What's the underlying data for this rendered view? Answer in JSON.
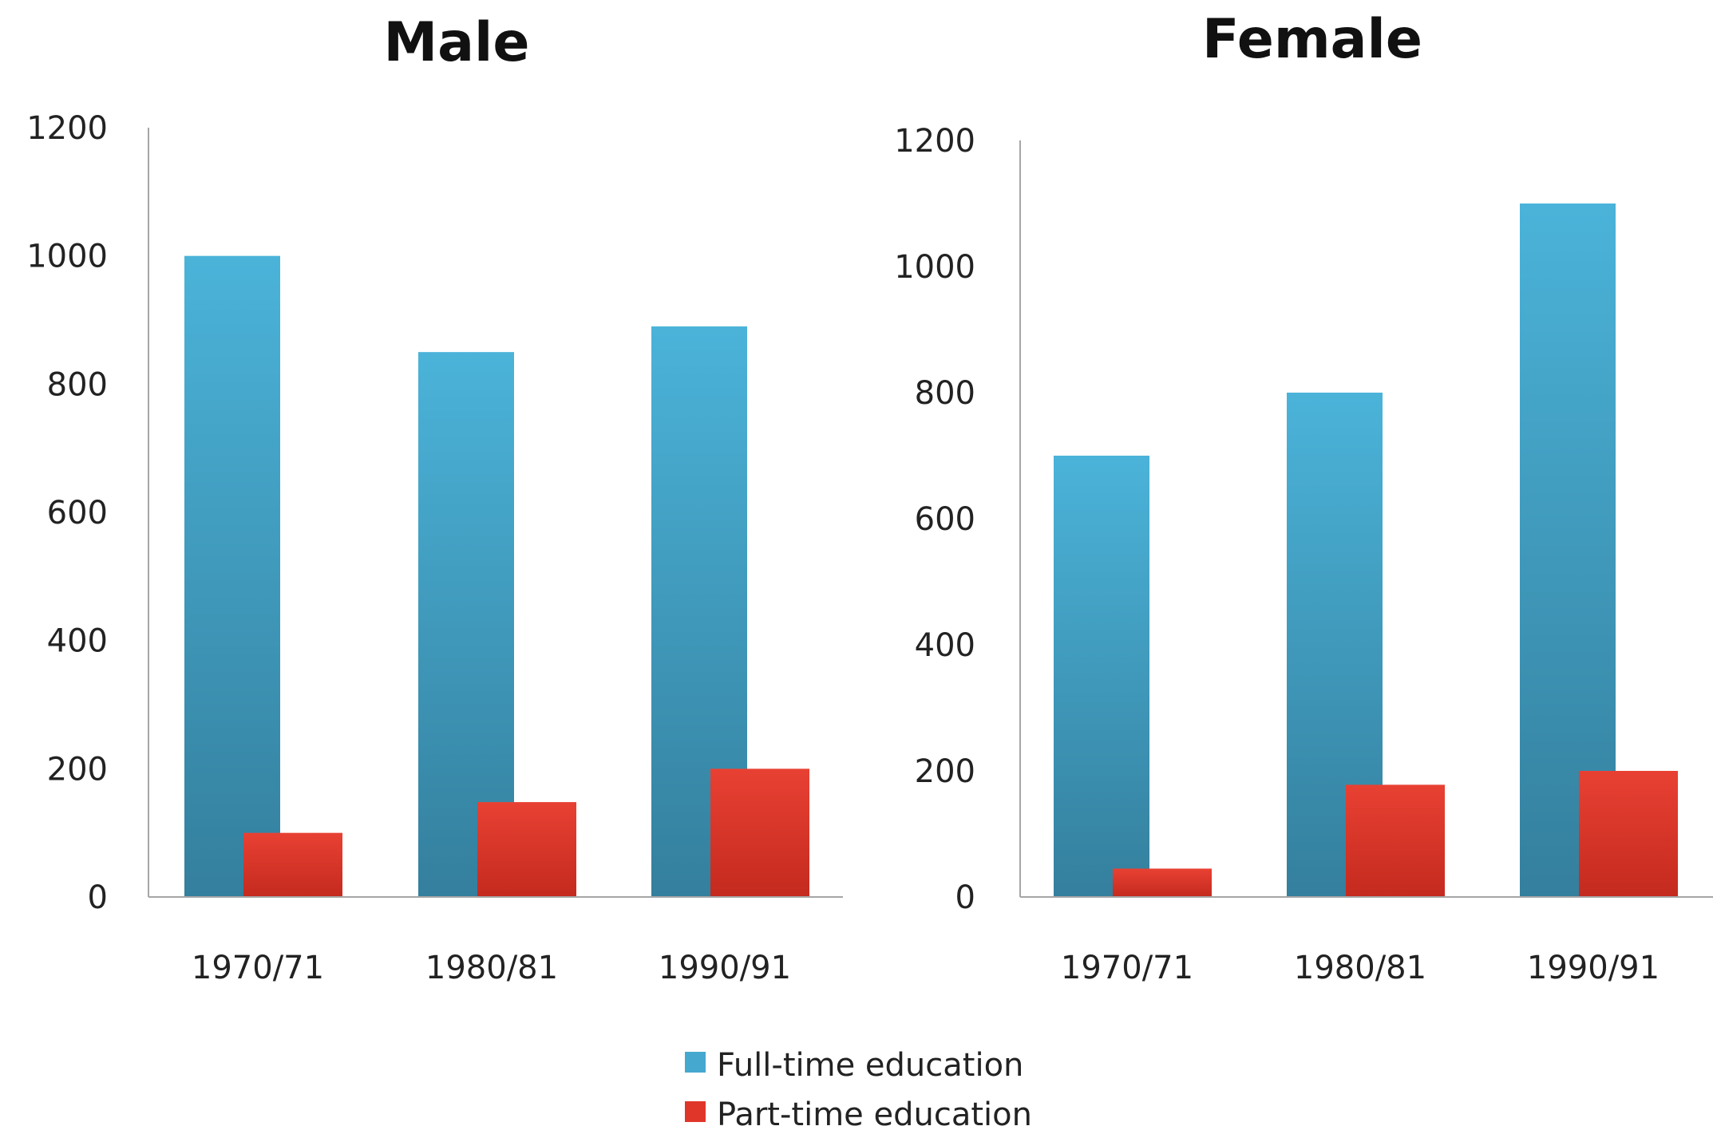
{
  "chart_data": [
    {
      "type": "bar",
      "title": "Male",
      "categories": [
        "1970/71",
        "1980/81",
        "1990/91"
      ],
      "series": [
        {
          "name": "Full-time education",
          "values": [
            1000,
            850,
            890
          ]
        },
        {
          "name": "Part-time education",
          "values": [
            100,
            148,
            200
          ]
        }
      ],
      "ylim": [
        0,
        1200
      ],
      "yticks": [
        "0",
        "200",
        "400",
        "600",
        "800",
        "1000",
        "1200"
      ],
      "grid": false
    },
    {
      "type": "bar",
      "title": "Female",
      "categories": [
        "1970/71",
        "1980/81",
        "1990/91"
      ],
      "series": [
        {
          "name": "Full-time education",
          "values": [
            700,
            800,
            1100
          ]
        },
        {
          "name": "Part-time education",
          "values": [
            45,
            178,
            200
          ]
        }
      ],
      "ylim": [
        0,
        1200
      ],
      "yticks": [
        "0",
        "200",
        "400",
        "600",
        "800",
        "1000",
        "1200"
      ],
      "grid": false
    }
  ],
  "legend": {
    "position": "bottom-center",
    "items": [
      {
        "label": "Full-time education",
        "color": "#45a8cf"
      },
      {
        "label": "Part-time education",
        "color": "#e0362a"
      }
    ]
  },
  "colors": {
    "full_time_top": "#4bb3d9",
    "full_time_bottom": "#347f9d",
    "part_time_top": "#e84133",
    "part_time_bottom": "#c42a1e",
    "axis": "#a6a6a6"
  }
}
